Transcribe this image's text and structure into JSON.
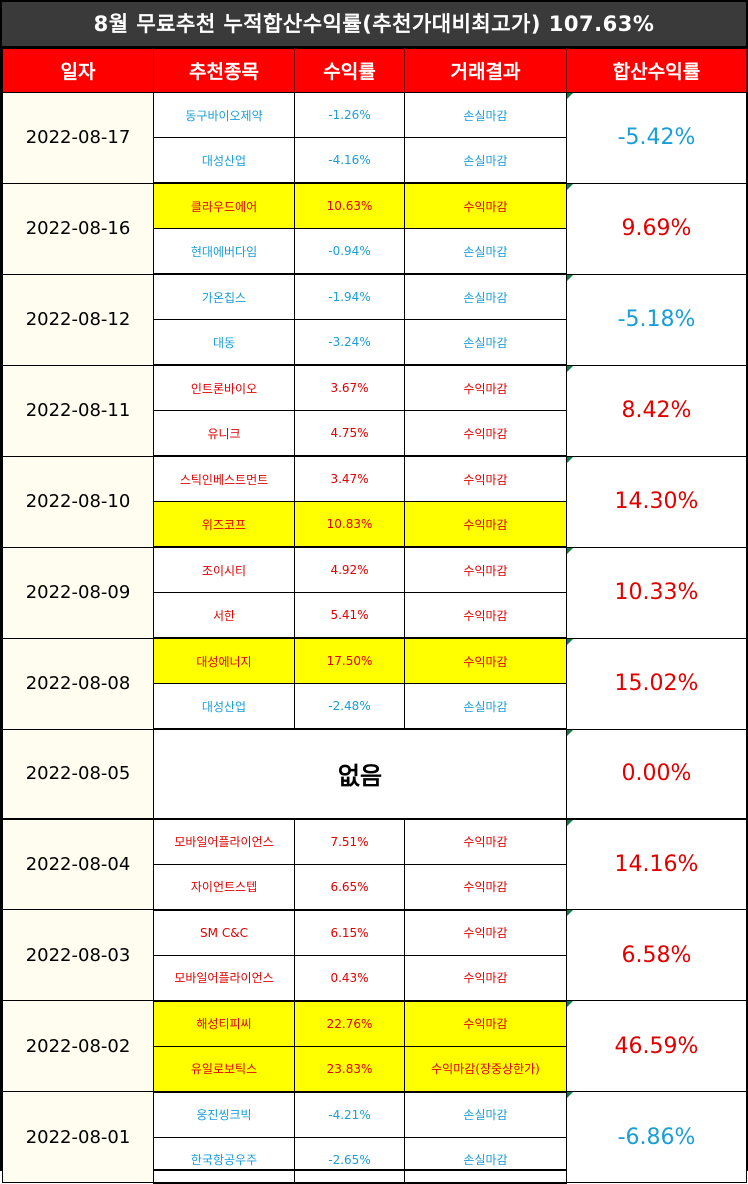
{
  "title": "8월 무료추천 누적합산수익률(추천가대비최고가) 107.63%",
  "headers": [
    "일자",
    "추천종목",
    "수익률",
    "거래결과",
    "합산수익률"
  ],
  "colors": {
    "header_bg": "#ff0000",
    "title_bg": "#3a3a3a",
    "loss": "#1a9ed8",
    "gain": "#e00000",
    "highlight": "#ffff00"
  },
  "groups": [
    {
      "date": "2022-08-17",
      "total": "-5.42%",
      "total_type": "loss",
      "rows": [
        {
          "stock": "동구바이오제약",
          "rate": "-1.26%",
          "result": "손실마감",
          "type": "loss",
          "highlight": false
        },
        {
          "stock": "대성산업",
          "rate": "-4.16%",
          "result": "손실마감",
          "type": "loss",
          "highlight": false
        }
      ]
    },
    {
      "date": "2022-08-16",
      "total": "9.69%",
      "total_type": "gain",
      "rows": [
        {
          "stock": "클라우드에어",
          "rate": "10.63%",
          "result": "수익마감",
          "type": "gain",
          "highlight": true
        },
        {
          "stock": "현대에버다임",
          "rate": "-0.94%",
          "result": "손실마감",
          "type": "loss",
          "highlight": false
        }
      ]
    },
    {
      "date": "2022-08-12",
      "total": "-5.18%",
      "total_type": "loss",
      "rows": [
        {
          "stock": "가온칩스",
          "rate": "-1.94%",
          "result": "손실마감",
          "type": "loss",
          "highlight": false
        },
        {
          "stock": "대동",
          "rate": "-3.24%",
          "result": "손실마감",
          "type": "loss",
          "highlight": false
        }
      ]
    },
    {
      "date": "2022-08-11",
      "total": "8.42%",
      "total_type": "gain",
      "rows": [
        {
          "stock": "인트론바이오",
          "rate": "3.67%",
          "result": "수익마감",
          "type": "gain",
          "highlight": false
        },
        {
          "stock": "유니크",
          "rate": "4.75%",
          "result": "수익마감",
          "type": "gain",
          "highlight": false
        }
      ]
    },
    {
      "date": "2022-08-10",
      "total": "14.30%",
      "total_type": "gain",
      "rows": [
        {
          "stock": "스틱인베스트먼트",
          "rate": "3.47%",
          "result": "수익마감",
          "type": "gain",
          "highlight": false
        },
        {
          "stock": "위즈코프",
          "rate": "10.83%",
          "result": "수익마감",
          "type": "gain",
          "highlight": true
        }
      ]
    },
    {
      "date": "2022-08-09",
      "total": "10.33%",
      "total_type": "gain",
      "rows": [
        {
          "stock": "조이시티",
          "rate": "4.92%",
          "result": "수익마감",
          "type": "gain",
          "highlight": false
        },
        {
          "stock": "서한",
          "rate": "5.41%",
          "result": "수익마감",
          "type": "gain",
          "highlight": false
        }
      ]
    },
    {
      "date": "2022-08-08",
      "total": "15.02%",
      "total_type": "gain",
      "rows": [
        {
          "stock": "대성에너지",
          "rate": "17.50%",
          "result": "수익마감",
          "type": "gain",
          "highlight": true
        },
        {
          "stock": "대성산업",
          "rate": "-2.48%",
          "result": "손실마감",
          "type": "loss",
          "highlight": false
        }
      ]
    },
    {
      "date": "2022-08-05",
      "total": "0.00%",
      "total_type": "gain",
      "none": "없음",
      "rows": []
    },
    {
      "date": "2022-08-04",
      "total": "14.16%",
      "total_type": "gain",
      "rows": [
        {
          "stock": "모바일어플라이언스",
          "rate": "7.51%",
          "result": "수익마감",
          "type": "gain",
          "highlight": false
        },
        {
          "stock": "자이언트스텝",
          "rate": "6.65%",
          "result": "수익마감",
          "type": "gain",
          "highlight": false
        }
      ]
    },
    {
      "date": "2022-08-03",
      "total": "6.58%",
      "total_type": "gain",
      "rows": [
        {
          "stock": "SM C&C",
          "rate": "6.15%",
          "result": "수익마감",
          "type": "gain",
          "highlight": false
        },
        {
          "stock": "모바일어플라이언스",
          "rate": "0.43%",
          "result": "수익마감",
          "type": "gain",
          "highlight": false
        }
      ]
    },
    {
      "date": "2022-08-02",
      "total": "46.59%",
      "total_type": "gain",
      "rows": [
        {
          "stock": "해성티피씨",
          "rate": "22.76%",
          "result": "수익마감",
          "type": "gain",
          "highlight": true
        },
        {
          "stock": "유일로보틱스",
          "rate": "23.83%",
          "result": "수익마감(장중상한가)",
          "type": "gain",
          "highlight": true
        }
      ]
    },
    {
      "date": "2022-08-01",
      "total": "-6.86%",
      "total_type": "loss",
      "rows": [
        {
          "stock": "웅진씽크빅",
          "rate": "-4.21%",
          "result": "손실마감",
          "type": "loss",
          "highlight": false
        },
        {
          "stock": "한국항공우주",
          "rate": "-2.65%",
          "result": "손실마감",
          "type": "loss",
          "highlight": false
        }
      ]
    }
  ]
}
